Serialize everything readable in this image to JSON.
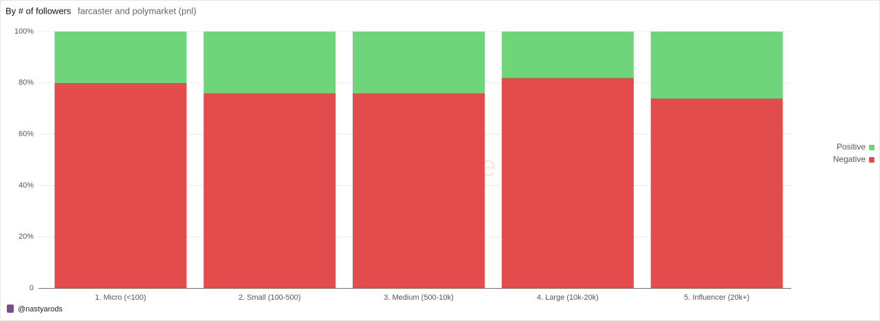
{
  "chart_data": {
    "type": "stacked_bar",
    "title": "By # of followers",
    "subtitle": "farcaster and polymarket (pnl)",
    "categories": [
      "1. Micro (<100)",
      "2. Small (100-500)",
      "3. Medium (500-10k)",
      "4. Large (10k-20k)",
      "5. Influencer (20k+)"
    ],
    "series": [
      {
        "name": "Negative",
        "color": "#e24c4c",
        "values": [
          80,
          76,
          76,
          82,
          74
        ]
      },
      {
        "name": "Positive",
        "color": "#6fd57b",
        "values": [
          20,
          24,
          24,
          18,
          26
        ]
      }
    ],
    "ylim": [
      0,
      100
    ],
    "yticks": [
      0,
      {
        "value": 20,
        "label": "20%"
      },
      {
        "value": 40,
        "label": "40%"
      },
      {
        "value": 60,
        "label": "60%"
      },
      {
        "value": 80,
        "label": "80%"
      },
      {
        "value": 100,
        "label": "100%"
      }
    ],
    "grid": true,
    "legend": "right",
    "watermark": "Dune",
    "footer": "@nastyarods"
  }
}
